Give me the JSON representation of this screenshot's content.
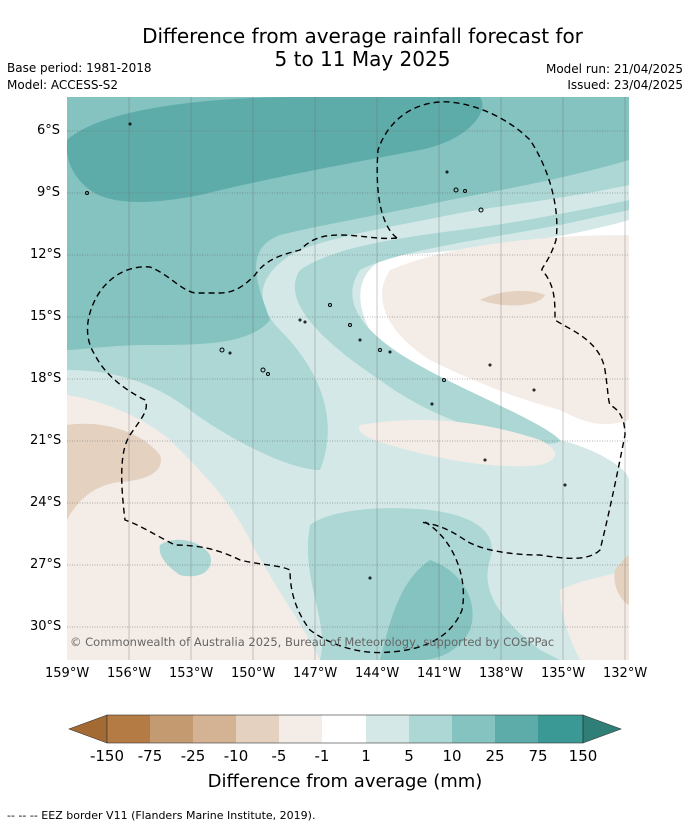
{
  "title_line1": "Difference from average rainfall forecast for",
  "title_line2": "5 to 11 May 2025",
  "base_period": "Base period: 1981-2018",
  "model": "Model: ACCESS-S2",
  "model_run": "Model run: 21/04/2025",
  "issued": "Issued: 23/04/2025",
  "copyright": "© Commonwealth of Australia 2025, Bureau of Meteorology, supported by COSPPac",
  "lat_ticks": [
    "6°S",
    "9°S",
    "12°S",
    "15°S",
    "18°S",
    "21°S",
    "24°S",
    "27°S",
    "30°S"
  ],
  "lon_ticks": [
    "159°W",
    "156°W",
    "153°W",
    "150°W",
    "147°W",
    "144°W",
    "141°W",
    "138°W",
    "135°W",
    "132°W"
  ],
  "colorbar": {
    "labels": [
      "-150",
      "-75",
      "-25",
      "-10",
      "-5",
      "-1",
      "1",
      "5",
      "10",
      "25",
      "75",
      "150"
    ],
    "colors": [
      "#a36a33",
      "#b47b45",
      "#c49a71",
      "#d4b394",
      "#e4d1c0",
      "#f4ece7",
      "#ffffff",
      "#d4e9e7",
      "#acd7d5",
      "#84c3c0",
      "#5eacaa",
      "#3a9994",
      "#2f7e78"
    ],
    "caption": "Difference from average (mm)"
  },
  "footnote": "--  --  -- EEZ border V11 (Flanders Marine Institute, 2019)."
}
